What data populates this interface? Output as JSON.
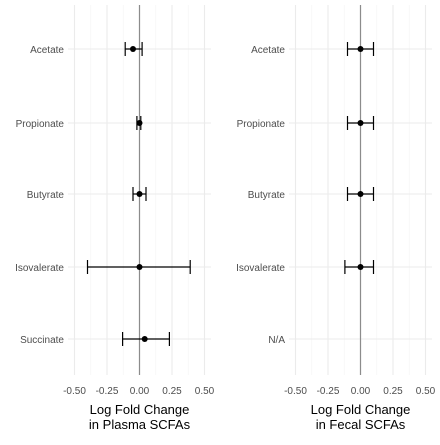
{
  "chart_data": [
    {
      "type": "forest",
      "xlabel": "Log Fold Change\nin Plasma SCFAs",
      "xlim": [
        -0.55,
        0.55
      ],
      "xticks": [
        -0.5,
        -0.25,
        0.0,
        0.25,
        0.5
      ],
      "xtick_labels": [
        "-0.50",
        "-0.25",
        "0.00",
        "0.25",
        "0.50"
      ],
      "reference_line": 0,
      "grid": true,
      "categories": [
        "Acetate",
        "Propionate",
        "Butyrate",
        "Isovalerate",
        "Succinate"
      ],
      "estimates": [
        -0.05,
        0.0,
        0.0,
        0.0,
        0.04
      ],
      "ci_lower": [
        -0.11,
        -0.02,
        -0.05,
        -0.4,
        -0.13
      ],
      "ci_upper": [
        0.02,
        0.01,
        0.05,
        0.39,
        0.23
      ]
    },
    {
      "type": "forest",
      "xlabel": "Log Fold Change\nin Fecal SCFAs",
      "xlim": [
        -0.55,
        0.55
      ],
      "xticks": [
        -0.5,
        -0.25,
        0.0,
        0.25,
        0.5
      ],
      "xtick_labels": [
        "-0.50",
        "-0.25",
        "0.00",
        "0.25",
        "0.50"
      ],
      "reference_line": 0,
      "grid": true,
      "categories": [
        "Acetate",
        "Propionate",
        "Butyrate",
        "Isovalerate",
        "N/A"
      ],
      "estimates": [
        0.0,
        0.0,
        0.0,
        0.0,
        null
      ],
      "ci_lower": [
        -0.1,
        -0.1,
        -0.1,
        -0.12,
        null
      ],
      "ci_upper": [
        0.1,
        0.1,
        0.1,
        0.1,
        null
      ]
    }
  ],
  "colors": {
    "point": "#000000",
    "errorbar": "#000000",
    "reference_line": "#8c8c8c",
    "grid_major": "#ebebeb",
    "grid_minor": "#f4f4f4",
    "tick_label": "#4d4d4d",
    "axis_title": "#000000"
  }
}
